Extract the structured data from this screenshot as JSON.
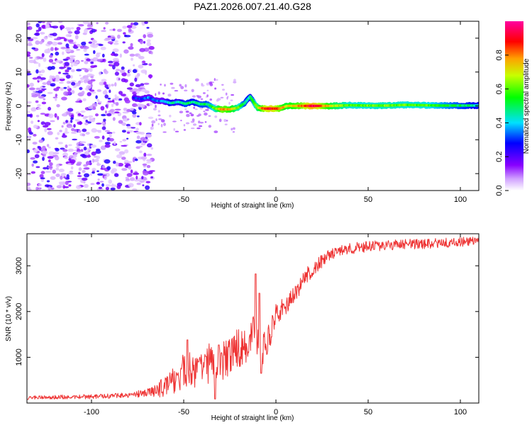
{
  "title": "PAZ1.2026.007.21.40.G28",
  "chart_data": [
    {
      "type": "heatmap",
      "name": "spectrogram",
      "xlabel": "Height of straight line (km)",
      "ylabel": "Frequency (Hz)",
      "xlim": [
        -135,
        110
      ],
      "ylim": [
        -25,
        25
      ],
      "xticks": [
        -100,
        -50,
        0,
        50,
        100
      ],
      "yticks": [
        -20,
        -10,
        0,
        10,
        20
      ],
      "colorbar": {
        "label": "Normalized spectral amplitude",
        "range": [
          0,
          1
        ],
        "ticks": [
          "0.0",
          "0.2",
          "0.4",
          "0.6",
          "0.8"
        ],
        "colors": [
          "#ffffff",
          "#8800ff",
          "#0000ff",
          "#00e0ff",
          "#00ff00",
          "#c8ff00",
          "#ffa000",
          "#ff0000",
          "#ff00a0"
        ]
      },
      "ridge": {
        "height_km": [
          -77,
          -73,
          -69,
          -65,
          -61,
          -57,
          -53,
          -49,
          -45,
          -41,
          -37,
          -33,
          -29,
          -25,
          -21,
          -17,
          -14,
          -12,
          -10,
          -6,
          -2,
          2,
          6,
          10,
          14,
          20,
          30,
          40,
          50,
          60,
          70,
          80,
          90,
          100,
          110
        ],
        "frequency_hz": [
          2.4,
          2.0,
          2.5,
          1.5,
          1.4,
          0.8,
          1.2,
          0.6,
          1.2,
          0.5,
          0.5,
          -0.8,
          -1.0,
          -1.0,
          -0.6,
          0.8,
          2.8,
          1.0,
          -0.5,
          -0.8,
          -0.8,
          -0.8,
          0.0,
          0.0,
          0.0,
          0.0,
          0.0,
          0.2,
          0.1,
          0.1,
          0.3,
          0.2,
          0.1,
          0.1,
          0.1
        ],
        "amplitude": [
          0.25,
          0.3,
          0.35,
          0.35,
          0.35,
          0.45,
          0.4,
          0.5,
          0.45,
          0.5,
          0.5,
          0.6,
          0.8,
          0.75,
          0.65,
          0.5,
          0.45,
          0.55,
          0.65,
          0.85,
          0.9,
          0.8,
          0.7,
          0.75,
          0.8,
          0.95,
          0.7,
          0.6,
          0.6,
          0.62,
          0.6,
          0.6,
          0.55,
          0.5,
          0.45
        ]
      }
    },
    {
      "type": "line",
      "name": "snr",
      "xlabel": "Height of straight line (km)",
      "ylabel": "SNR (10 * v/v)",
      "xlim": [
        -135,
        110
      ],
      "ylim": [
        0,
        3700
      ],
      "xticks": [
        -100,
        -50,
        0,
        50,
        100
      ],
      "yticks": [
        1000,
        2000,
        3000
      ],
      "color": "#ee3333",
      "envelope": {
        "x": [
          -135,
          -120,
          -100,
          -80,
          -70,
          -62,
          -55,
          -50,
          -45,
          -40,
          -35,
          -30,
          -25,
          -20,
          -15,
          -12,
          -10,
          -7,
          -5,
          0,
          5,
          10,
          15,
          20,
          25,
          30,
          35,
          40,
          50,
          60,
          70,
          80,
          90,
          100,
          110
        ],
        "y": [
          120,
          130,
          140,
          170,
          230,
          330,
          520,
          700,
          700,
          750,
          900,
          850,
          1050,
          1200,
          1350,
          1650,
          1450,
          1150,
          1300,
          1900,
          2100,
          2350,
          2700,
          2950,
          3100,
          3250,
          3320,
          3380,
          3420,
          3450,
          3470,
          3480,
          3500,
          3520,
          3540
        ]
      },
      "noise": {
        "x": [
          -135,
          -100,
          -80,
          -70,
          -60,
          -50,
          -40,
          -30,
          -20,
          -10,
          0,
          10,
          20,
          30,
          50,
          80,
          110
        ],
        "y": [
          40,
          50,
          60,
          90,
          230,
          380,
          460,
          420,
          440,
          420,
          260,
          200,
          170,
          130,
          120,
          110,
          100
        ]
      },
      "peaks": [
        {
          "x": -48,
          "y": 1380
        },
        {
          "x": -42,
          "y": 900
        },
        {
          "x": -38,
          "y": 1020
        },
        {
          "x": -31,
          "y": 1270
        },
        {
          "x": -11,
          "y": 2820
        },
        {
          "x": -9,
          "y": 2400
        },
        {
          "x": -8,
          "y": 650
        },
        {
          "x": -33,
          "y": 90
        }
      ]
    }
  ]
}
